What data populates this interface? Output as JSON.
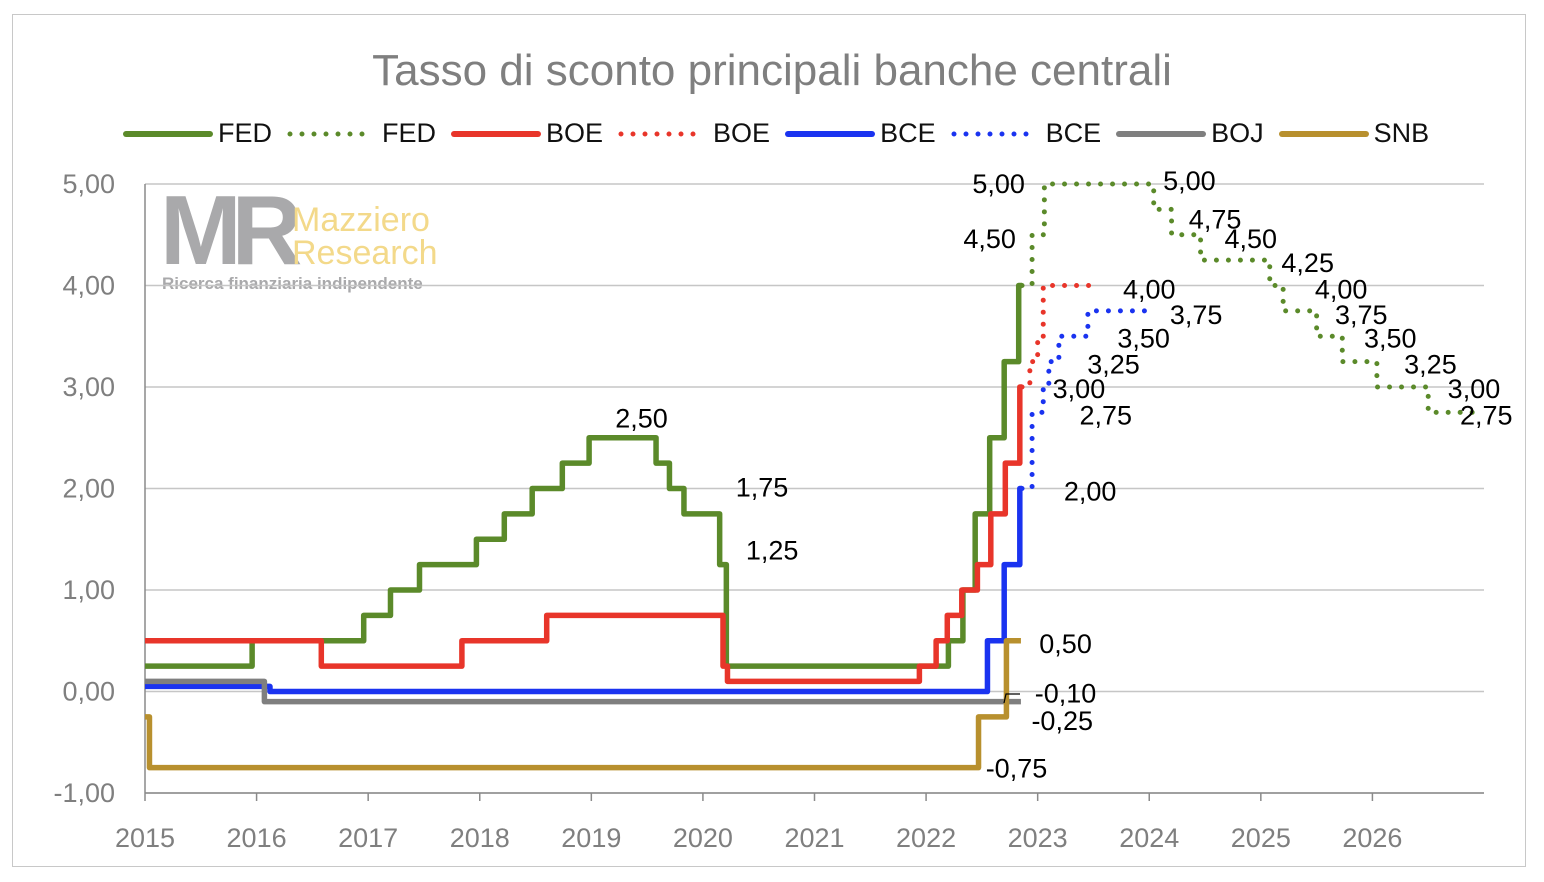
{
  "chart_data": {
    "type": "line",
    "title": "Tasso di sconto principali banche centrali",
    "xlabel": "",
    "ylabel": "",
    "xlim": [
      2015,
      2027
    ],
    "ylim": [
      -1,
      5
    ],
    "x_ticks": [
      "2015",
      "2016",
      "2017",
      "2018",
      "2019",
      "2020",
      "2021",
      "2022",
      "2023",
      "2024",
      "2025",
      "2026"
    ],
    "y_ticks": [
      "-1,00",
      "0,00",
      "1,00",
      "2,00",
      "3,00",
      "4,00",
      "5,00"
    ],
    "grid": "horizontal",
    "legend_position": "top",
    "step": "after",
    "series": [
      {
        "name": "FED",
        "style": "solid",
        "color": "#5b8a2a",
        "points": [
          [
            2015,
            0.25
          ],
          [
            2015.96,
            0.5
          ],
          [
            2016.96,
            0.75
          ],
          [
            2017.2,
            1.0
          ],
          [
            2017.46,
            1.25
          ],
          [
            2017.97,
            1.5
          ],
          [
            2018.22,
            1.75
          ],
          [
            2018.47,
            2.0
          ],
          [
            2018.74,
            2.25
          ],
          [
            2018.98,
            2.5
          ],
          [
            2019.58,
            2.25
          ],
          [
            2019.7,
            2.0
          ],
          [
            2019.83,
            1.75
          ],
          [
            2020.15,
            1.25
          ],
          [
            2020.21,
            0.25
          ],
          [
            2022.2,
            0.5
          ],
          [
            2022.33,
            1.0
          ],
          [
            2022.44,
            1.75
          ],
          [
            2022.57,
            2.5
          ],
          [
            2022.7,
            3.25
          ],
          [
            2022.83,
            4.0
          ],
          [
            2022.86,
            4.0
          ]
        ]
      },
      {
        "name": "FED",
        "style": "dotted",
        "color": "#5b8a2a",
        "points": [
          [
            2022.86,
            4.0
          ],
          [
            2022.95,
            4.5
          ],
          [
            2023.06,
            5.0
          ],
          [
            2024.04,
            4.75
          ],
          [
            2024.2,
            4.5
          ],
          [
            2024.46,
            4.25
          ],
          [
            2025.08,
            4.0
          ],
          [
            2025.2,
            3.75
          ],
          [
            2025.5,
            3.5
          ],
          [
            2025.73,
            3.25
          ],
          [
            2026.04,
            3.0
          ],
          [
            2026.5,
            2.75
          ],
          [
            2026.92,
            2.75
          ]
        ]
      },
      {
        "name": "BOE",
        "style": "solid",
        "color": "#e8352a",
        "points": [
          [
            2015,
            0.5
          ],
          [
            2016.58,
            0.25
          ],
          [
            2017.84,
            0.5
          ],
          [
            2018.6,
            0.75
          ],
          [
            2020.18,
            0.25
          ],
          [
            2020.22,
            0.1
          ],
          [
            2021.94,
            0.25
          ],
          [
            2022.09,
            0.5
          ],
          [
            2022.19,
            0.75
          ],
          [
            2022.32,
            1.0
          ],
          [
            2022.46,
            1.25
          ],
          [
            2022.58,
            1.75
          ],
          [
            2022.71,
            2.25
          ],
          [
            2022.84,
            3.0
          ],
          [
            2022.86,
            3.0
          ]
        ]
      },
      {
        "name": "BOE",
        "style": "dotted",
        "color": "#e8352a",
        "points": [
          [
            2022.86,
            3.0
          ],
          [
            2022.93,
            3.25
          ],
          [
            2023.0,
            3.5
          ],
          [
            2023.05,
            4.0
          ],
          [
            2023.55,
            4.0
          ]
        ]
      },
      {
        "name": "BCE",
        "style": "solid",
        "color": "#1a33f0",
        "points": [
          [
            2015,
            0.05
          ],
          [
            2016.12,
            0.0
          ],
          [
            2022.55,
            0.5
          ],
          [
            2022.7,
            1.25
          ],
          [
            2022.84,
            2.0
          ],
          [
            2022.86,
            2.0
          ]
        ]
      },
      {
        "name": "BCE",
        "style": "dotted",
        "color": "#1a33f0",
        "points": [
          [
            2022.86,
            2.0
          ],
          [
            2022.95,
            2.75
          ],
          [
            2023.05,
            3.0
          ],
          [
            2023.1,
            3.25
          ],
          [
            2023.19,
            3.5
          ],
          [
            2023.45,
            3.75
          ],
          [
            2023.98,
            3.75
          ]
        ]
      },
      {
        "name": "BOJ",
        "style": "solid",
        "color": "#7f7f7f",
        "points": [
          [
            2015,
            0.1
          ],
          [
            2016.07,
            -0.1
          ],
          [
            2022.85,
            -0.1
          ]
        ]
      },
      {
        "name": "SNB",
        "style": "solid",
        "color": "#b8902e",
        "points": [
          [
            2015,
            -0.25
          ],
          [
            2015.04,
            -0.75
          ],
          [
            2022.47,
            -0.25
          ],
          [
            2022.72,
            0.5
          ],
          [
            2022.85,
            0.5
          ]
        ]
      }
    ],
    "annotations": [
      {
        "text": "2,50",
        "x": 2019.45,
        "y": 2.7
      },
      {
        "text": "1,75",
        "x": 2020.53,
        "y": 2.02
      },
      {
        "text": "1,25",
        "x": 2020.62,
        "y": 1.4
      },
      {
        "text": "5,00",
        "x": 2022.65,
        "y": 5.01
      },
      {
        "text": "4,50",
        "x": 2022.57,
        "y": 4.47
      },
      {
        "text": "5,00",
        "x": 2024.36,
        "y": 5.04
      },
      {
        "text": "4,75",
        "x": 2024.59,
        "y": 4.66
      },
      {
        "text": "4,50",
        "x": 2024.91,
        "y": 4.47
      },
      {
        "text": "4,25",
        "x": 2025.42,
        "y": 4.23
      },
      {
        "text": "4,00",
        "x": 2024.0,
        "y": 3.97
      },
      {
        "text": "4,00",
        "x": 2025.72,
        "y": 3.97
      },
      {
        "text": "3,75",
        "x": 2024.42,
        "y": 3.72
      },
      {
        "text": "3,75",
        "x": 2025.9,
        "y": 3.72
      },
      {
        "text": "3,50",
        "x": 2023.95,
        "y": 3.49
      },
      {
        "text": "3,50",
        "x": 2026.16,
        "y": 3.49
      },
      {
        "text": "3,25",
        "x": 2023.68,
        "y": 3.23
      },
      {
        "text": "3,25",
        "x": 2026.52,
        "y": 3.23
      },
      {
        "text": "3,00",
        "x": 2023.37,
        "y": 2.99
      },
      {
        "text": "3,00",
        "x": 2026.91,
        "y": 2.99
      },
      {
        "text": "2,75",
        "x": 2023.61,
        "y": 2.73
      },
      {
        "text": "2,75",
        "x": 2027.02,
        "y": 2.73
      },
      {
        "text": "2,00",
        "x": 2023.47,
        "y": 1.98
      },
      {
        "text": "0,50",
        "x": 2023.25,
        "y": 0.48
      },
      {
        "text": "-0,10",
        "x": 2023.25,
        "y": -0.01
      },
      {
        "text": "-0,25",
        "x": 2023.22,
        "y": -0.28
      },
      {
        "text": "-0,75",
        "x": 2022.81,
        "y": -0.75
      }
    ]
  },
  "legend": [
    {
      "label": "FED",
      "style": "solid",
      "color": "#5b8a2a"
    },
    {
      "label": "FED",
      "style": "dotted",
      "color": "#5b8a2a"
    },
    {
      "label": "BOE",
      "style": "solid",
      "color": "#e8352a"
    },
    {
      "label": "BOE",
      "style": "dotted",
      "color": "#e8352a"
    },
    {
      "label": "BCE",
      "style": "solid",
      "color": "#1a33f0"
    },
    {
      "label": "BCE",
      "style": "dotted",
      "color": "#1a33f0"
    },
    {
      "label": "BOJ",
      "style": "solid",
      "color": "#7f7f7f"
    },
    {
      "label": "SNB",
      "style": "solid",
      "color": "#b8902e"
    }
  ],
  "watermark": {
    "monogram": "MR",
    "name_line1": "Mazziero",
    "name_line2": "Research",
    "tagline": "Ricerca finanziaria indipendente"
  }
}
